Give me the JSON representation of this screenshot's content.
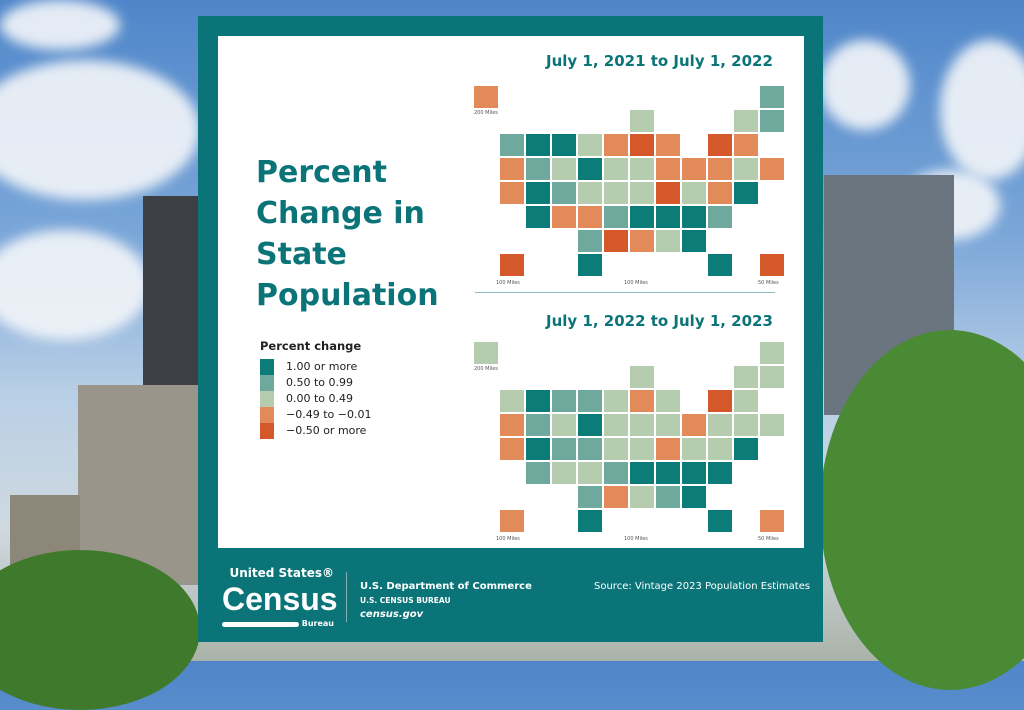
{
  "title": "Percent Change in State Population",
  "legend": {
    "title": "Percent change",
    "items": [
      {
        "label": "1.00 or more",
        "color": "#0b7c78"
      },
      {
        "label": "0.50 to 0.99",
        "color": "#6fa89c"
      },
      {
        "label": "0.00 to 0.49",
        "color": "#b6ccae"
      },
      {
        "label": "−0.49 to −0.01",
        "color": "#e38a5a"
      },
      {
        "label": "−0.50 or more",
        "color": "#d5582a"
      }
    ]
  },
  "maps": [
    {
      "title": "July 1, 2021 to July 1, 2022",
      "scales": [
        "200 Miles",
        "100 Miles",
        "100 Miles",
        "50 Miles"
      ],
      "states": {
        "AK": 3,
        "ME": 1,
        "WI": 2,
        "VT": 2,
        "NH": 1,
        "WA": 1,
        "ID": 0,
        "MT": 0,
        "ND": 2,
        "MN": 3,
        "IL": 4,
        "MI": 3,
        "NY": 4,
        "MA": 3,
        "OR": 3,
        "NV": 1,
        "WY": 2,
        "SD": 0,
        "IA": 2,
        "IN": 2,
        "OH": 3,
        "PA": 3,
        "NJ": 3,
        "CT": 2,
        "RI": 3,
        "CA": 3,
        "UT": 0,
        "CO": 1,
        "NE": 2,
        "MO": 2,
        "KY": 2,
        "WV": 4,
        "VA": 2,
        "MD": 3,
        "DE": 0,
        "AZ": 0,
        "NM": 3,
        "KS": 3,
        "AR": 1,
        "TN": 0,
        "NC": 0,
        "SC": 0,
        "DC": 1,
        "OK": 1,
        "LA": 4,
        "MS": 3,
        "AL": 2,
        "GA": 0,
        "HI": 4,
        "TX": 0,
        "FL": 0,
        "PR": 4
      }
    },
    {
      "title": "July 1, 2022 to July 1, 2023",
      "scales": [
        "200 Miles",
        "100 Miles",
        "100 Miles",
        "50 Miles"
      ],
      "states": {
        "AK": 2,
        "ME": 2,
        "WI": 2,
        "VT": 2,
        "NH": 2,
        "WA": 2,
        "ID": 0,
        "MT": 1,
        "ND": 1,
        "MN": 2,
        "IL": 3,
        "MI": 2,
        "NY": 4,
        "MA": 2,
        "OR": 3,
        "NV": 1,
        "WY": 2,
        "SD": 0,
        "IA": 2,
        "IN": 2,
        "OH": 2,
        "PA": 3,
        "NJ": 2,
        "CT": 2,
        "RI": 2,
        "CA": 3,
        "UT": 0,
        "CO": 1,
        "NE": 1,
        "MO": 2,
        "KY": 2,
        "WV": 3,
        "VA": 2,
        "MD": 2,
        "DE": 0,
        "AZ": 1,
        "NM": 2,
        "KS": 2,
        "AR": 1,
        "TN": 0,
        "NC": 0,
        "SC": 0,
        "DC": 0,
        "OK": 1,
        "LA": 3,
        "MS": 2,
        "AL": 1,
        "GA": 0,
        "HI": 3,
        "TX": 0,
        "FL": 0,
        "PR": 3
      }
    }
  ],
  "footer": {
    "logo": {
      "line1": "United States®",
      "line2": "Census",
      "line3": "Bureau"
    },
    "dept": "U.S. Department of Commerce",
    "bureau": "U.S. CENSUS BUREAU",
    "site": "census.gov",
    "source": "Source: Vintage 2023 Population Estimates"
  }
}
